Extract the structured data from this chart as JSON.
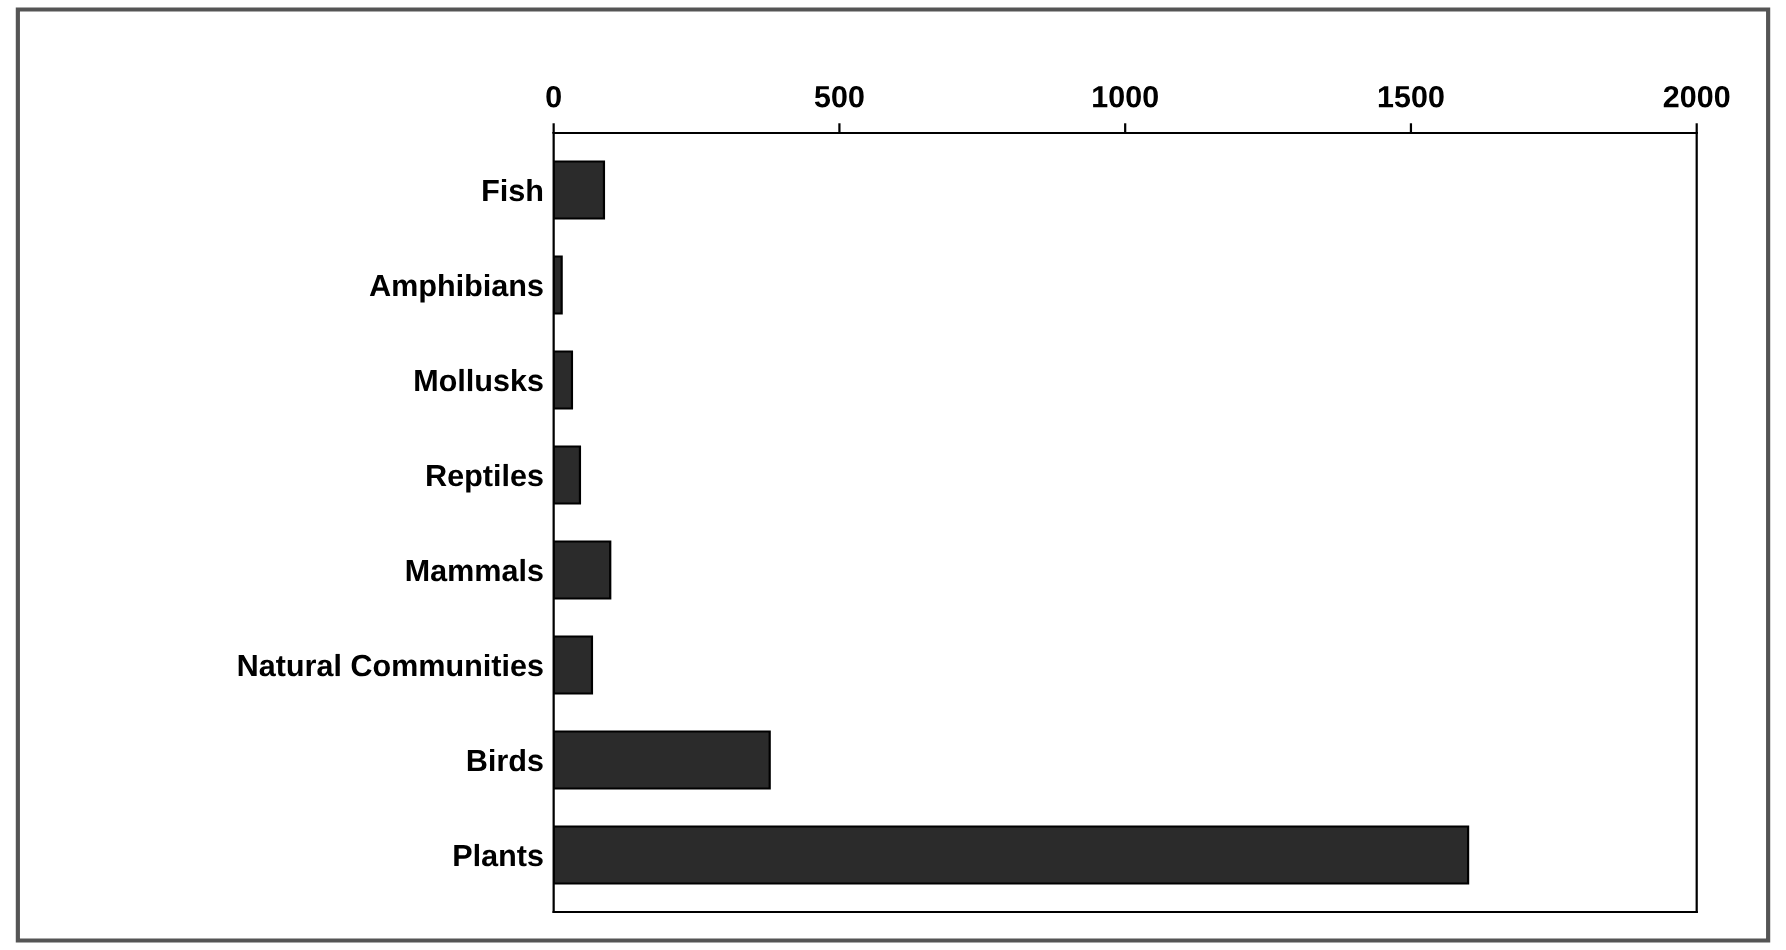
{
  "chart_data": {
    "type": "bar",
    "orientation": "horizontal",
    "categories": [
      "Fish",
      "Amphibians",
      "Mollusks",
      "Reptiles",
      "Mammals",
      "Natural Communities",
      "Birds",
      "Plants"
    ],
    "values": [
      88,
      14,
      32,
      46,
      99,
      67,
      378,
      1600
    ],
    "color": "#2b2b2b",
    "xlim": [
      0,
      2000
    ],
    "xticks": [
      0,
      500,
      1000,
      1500,
      2000
    ],
    "grid": false,
    "legend": false
  }
}
